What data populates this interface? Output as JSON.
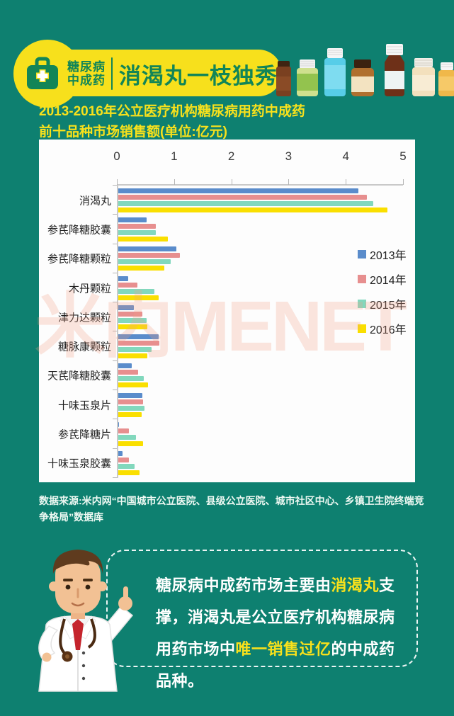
{
  "page_bg": "#0e8070",
  "header": {
    "badge_label_line1": "糖尿病",
    "badge_label_line2": "中成药",
    "title": "消渴丸一枝独秀",
    "icon": "medical-case-icon",
    "badge_color": "#f7e01c",
    "text_color": "#128557",
    "bottle_icons": [
      "brown-small-bottle",
      "green-pill-bottle",
      "cyan-bottle",
      "amber-jar",
      "brown-syrup-bottle",
      "cream-pill-bottle",
      "honey-bottle"
    ]
  },
  "chart_heading": {
    "line1": "2013-2016年公立医疗机构糖尿病用药中成药",
    "line2": "前十品种市场销售额(单位:亿元)"
  },
  "chart_data": {
    "type": "bar",
    "orientation": "horizontal",
    "title": "2013-2016年公立医疗机构糖尿病用药中成药前十品种市场销售额",
    "unit": "亿元",
    "xlim": [
      0,
      5
    ],
    "x_ticks": [
      0,
      1,
      2,
      3,
      4,
      5
    ],
    "grid": false,
    "legend_position": "right",
    "watermark": "米内MENET",
    "categories": [
      "消渴丸",
      "参芪降糖胶囊",
      "参芪降糖颗粒",
      "木丹颗粒",
      "津力达颗粒",
      "糖脉康颗粒",
      "天芪降糖胶囊",
      "十味玉泉片",
      "参芪降糖片",
      "十味玉泉胶囊"
    ],
    "series": [
      {
        "name": "2013年",
        "color": "#5a8ccb",
        "values": [
          4.2,
          0.5,
          1.02,
          0.17,
          0.27,
          0.71,
          0.24,
          0.42,
          0.01,
          0.07
        ]
      },
      {
        "name": "2014年",
        "color": "#e78f8f",
        "values": [
          4.35,
          0.66,
          1.08,
          0.33,
          0.42,
          0.72,
          0.35,
          0.43,
          0.18,
          0.18
        ]
      },
      {
        "name": "2015年",
        "color": "#82d8bd",
        "values": [
          4.45,
          0.65,
          0.92,
          0.63,
          0.5,
          0.58,
          0.45,
          0.46,
          0.31,
          0.29
        ]
      },
      {
        "name": "2016年",
        "color": "#fadf00",
        "values": [
          4.7,
          0.87,
          0.81,
          0.7,
          0.51,
          0.51,
          0.52,
          0.41,
          0.43,
          0.37
        ]
      }
    ]
  },
  "source_text": "数据来源:米内网“中国城市公立医院、县级公立医院、城市社区中心、乡镇卫生院终端竞争格局”数据库",
  "bubble": {
    "segments": [
      {
        "text": "糖尿病中成药市场主要由",
        "highlight": false
      },
      {
        "text": "消渴丸",
        "highlight": true
      },
      {
        "text": "支撑，消渴丸是公立医疗机构糖尿病用药市场中",
        "highlight": false
      },
      {
        "text": "唯一销售过亿",
        "highlight": true
      },
      {
        "text": "的中成药品种。",
        "highlight": false
      }
    ],
    "highlight_color": "#f8e11c"
  }
}
